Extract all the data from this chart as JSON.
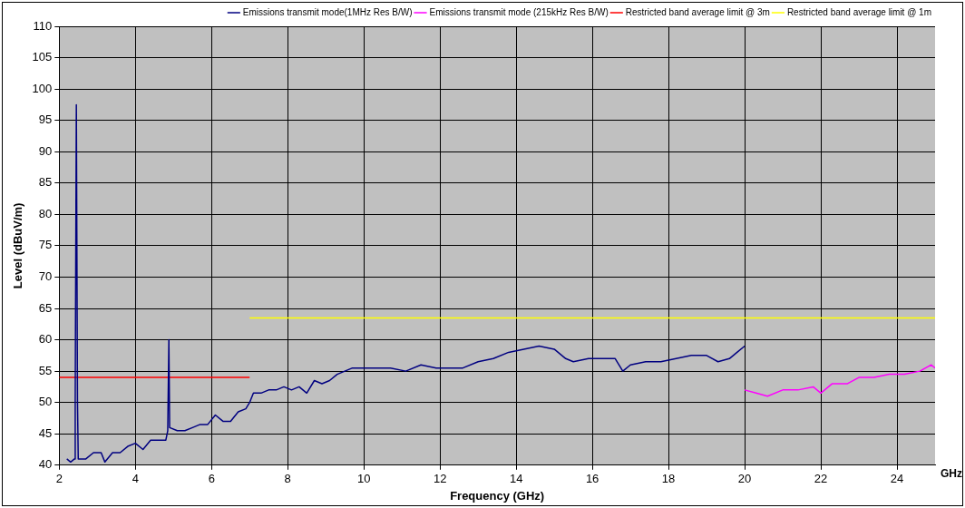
{
  "chart_data": {
    "type": "line",
    "xlabel": "Frequency (GHz)",
    "ylabel": "Level (dBuV/m)",
    "xlim": [
      2,
      25
    ],
    "xticks": [
      2,
      4,
      6,
      8,
      10,
      12,
      14,
      16,
      18,
      20,
      22,
      24
    ],
    "ylim": [
      40,
      110
    ],
    "yticks": [
      40,
      45,
      50,
      55,
      60,
      65,
      70,
      75,
      80,
      85,
      90,
      95,
      100,
      105,
      110
    ],
    "grid": true,
    "legend": "top right",
    "marker": "none",
    "line_style": "solid",
    "annotations": [
      "GHz"
    ],
    "series": [
      {
        "name": "Emissions transmit mode(1MHz Res B/W)",
        "color": "#000080",
        "x": [
          2.2,
          2.3,
          2.4,
          2.42,
          2.45,
          2.48,
          2.5,
          2.7,
          2.9,
          3.1,
          3.2,
          3.4,
          3.6,
          3.8,
          4.0,
          4.2,
          4.4,
          4.6,
          4.8,
          4.85,
          4.88,
          4.9,
          5.1,
          5.3,
          5.5,
          5.7,
          5.9,
          6.1,
          6.3,
          6.5,
          6.7,
          6.9,
          7.0,
          7.1,
          7.3,
          7.5,
          7.7,
          7.9,
          8.1,
          8.3,
          8.5,
          8.7,
          8.9,
          9.1,
          9.3,
          9.5,
          9.7,
          9.9,
          10.3,
          10.7,
          11.1,
          11.5,
          11.9,
          12.3,
          12.6,
          13.0,
          13.4,
          13.8,
          14.2,
          14.6,
          15.0,
          15.3,
          15.5,
          15.9,
          16.3,
          16.6,
          16.8,
          17.0,
          17.4,
          17.8,
          18.2,
          18.6,
          19.0,
          19.3,
          19.6,
          19.8,
          20.0
        ],
        "values": [
          41,
          40.5,
          41,
          50,
          97.5,
          50,
          41,
          41,
          42,
          42,
          40.5,
          42,
          42,
          43,
          43.5,
          42.5,
          44,
          44,
          44,
          45.5,
          60,
          46,
          45.5,
          45.5,
          46,
          46.5,
          46.5,
          48,
          47,
          47,
          48.5,
          49,
          50,
          51.5,
          51.5,
          52,
          52,
          52.5,
          52,
          52.5,
          51.5,
          53.5,
          53,
          53.5,
          54.5,
          55,
          55.5,
          55.5,
          55.5,
          55.5,
          55,
          56,
          55.5,
          55.5,
          55.5,
          56.5,
          57,
          58,
          58.5,
          59,
          58.5,
          57,
          56.5,
          57,
          57,
          57,
          55,
          56,
          56.5,
          56.5,
          57,
          57.5,
          57.5,
          56.5,
          57,
          58,
          59
        ]
      },
      {
        "name": "Emissions transmit mode (215kHz Res B/W)",
        "color": "#ff00ff",
        "x": [
          20.0,
          20.3,
          20.6,
          21.0,
          21.4,
          21.8,
          22.0,
          22.3,
          22.7,
          23.0,
          23.4,
          23.8,
          24.2,
          24.6,
          24.9,
          25.0
        ],
        "values": [
          52,
          51.5,
          51,
          52,
          52,
          52.5,
          51.5,
          53,
          53,
          54,
          54,
          54.5,
          54.5,
          55,
          56,
          55.5
        ]
      },
      {
        "name": "Restricted band average limit @ 3m",
        "color": "#ff0000",
        "x": [
          2,
          7
        ],
        "values": [
          54,
          54
        ]
      },
      {
        "name": "Restricted band average limit @ 1m",
        "color": "#ffff00",
        "x": [
          7,
          25
        ],
        "values": [
          63.5,
          63.5
        ]
      }
    ]
  }
}
